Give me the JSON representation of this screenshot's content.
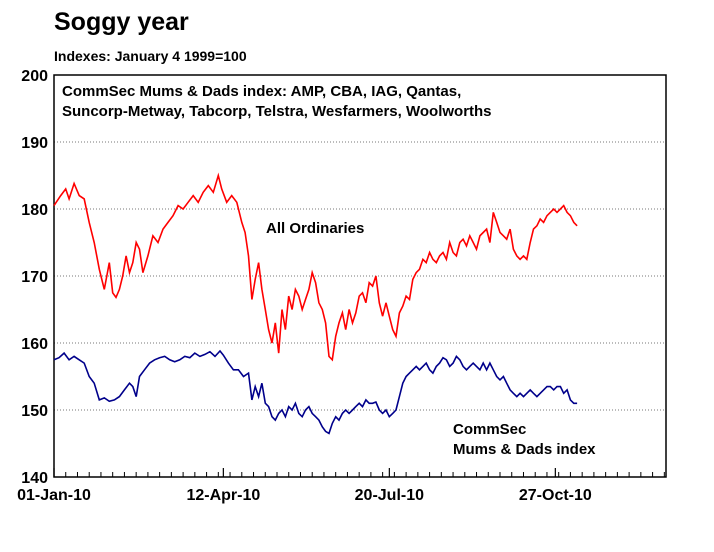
{
  "chart_data": {
    "type": "line",
    "title": "Soggy year",
    "subtitle": "Indexes: January 4 1999=100",
    "x_tick_labels": [
      "01-Jan-10",
      "12-Apr-10",
      "20-Jul-10",
      "27-Oct-10"
    ],
    "x_tick_days": [
      0,
      101,
      200,
      299
    ],
    "x_range_days": [
      0,
      365
    ],
    "ylim": [
      140,
      200
    ],
    "y_ticks": [
      140,
      150,
      160,
      170,
      180,
      190,
      200
    ],
    "grid": "horizontal dotted",
    "annotations": {
      "box_line1": "CommSec Mums & Dads index: AMP, CBA, IAG, Qantas,",
      "box_line2": "Suncorp-Metway, Tabcorp, Telstra, Wesfarmers, Woolworths",
      "all_ords_label": "All Ordinaries",
      "mums_label_line1": "CommSec",
      "mums_label_line2": "Mums & Dads index"
    },
    "series": [
      {
        "name": "All Ordinaries",
        "color": "#ff0000",
        "points": [
          [
            0,
            180.5
          ],
          [
            4,
            182
          ],
          [
            7,
            183
          ],
          [
            9,
            181.5
          ],
          [
            12,
            183.8
          ],
          [
            15,
            182
          ],
          [
            18,
            181.5
          ],
          [
            21,
            178
          ],
          [
            24,
            175
          ],
          [
            27,
            171
          ],
          [
            30,
            168
          ],
          [
            33,
            172
          ],
          [
            35,
            167.5
          ],
          [
            37,
            166.8
          ],
          [
            39,
            168
          ],
          [
            41,
            170
          ],
          [
            43,
            173
          ],
          [
            45,
            170.5
          ],
          [
            47,
            172
          ],
          [
            49,
            175
          ],
          [
            51,
            174
          ],
          [
            53,
            170.5
          ],
          [
            56,
            173
          ],
          [
            59,
            176
          ],
          [
            62,
            175
          ],
          [
            65,
            177
          ],
          [
            68,
            178
          ],
          [
            71,
            179
          ],
          [
            74,
            180.5
          ],
          [
            77,
            180
          ],
          [
            80,
            181
          ],
          [
            83,
            182
          ],
          [
            86,
            181
          ],
          [
            89,
            182.5
          ],
          [
            92,
            183.5
          ],
          [
            95,
            182.5
          ],
          [
            98,
            185
          ],
          [
            100,
            183
          ],
          [
            103,
            181
          ],
          [
            106,
            182
          ],
          [
            109,
            181
          ],
          [
            112,
            178
          ],
          [
            114,
            176.5
          ],
          [
            116,
            173
          ],
          [
            118,
            166.5
          ],
          [
            120,
            169.5
          ],
          [
            122,
            172
          ],
          [
            124,
            168
          ],
          [
            126,
            165
          ],
          [
            128,
            162
          ],
          [
            130,
            160
          ],
          [
            132,
            163
          ],
          [
            134,
            158.5
          ],
          [
            136,
            165
          ],
          [
            138,
            162
          ],
          [
            140,
            167
          ],
          [
            142,
            165
          ],
          [
            144,
            168
          ],
          [
            146,
            167
          ],
          [
            148,
            165
          ],
          [
            150,
            166.5
          ],
          [
            152,
            168
          ],
          [
            154,
            170.5
          ],
          [
            156,
            169
          ],
          [
            158,
            166
          ],
          [
            160,
            165
          ],
          [
            162,
            163
          ],
          [
            164,
            158
          ],
          [
            166,
            157.5
          ],
          [
            168,
            161
          ],
          [
            170,
            163
          ],
          [
            172,
            164.5
          ],
          [
            174,
            162
          ],
          [
            176,
            165
          ],
          [
            178,
            163
          ],
          [
            180,
            164.5
          ],
          [
            182,
            167
          ],
          [
            184,
            167.5
          ],
          [
            186,
            166
          ],
          [
            188,
            169
          ],
          [
            190,
            168.5
          ],
          [
            192,
            170
          ],
          [
            194,
            166
          ],
          [
            196,
            164
          ],
          [
            198,
            166
          ],
          [
            200,
            164
          ],
          [
            202,
            162
          ],
          [
            204,
            161
          ],
          [
            206,
            164.5
          ],
          [
            208,
            165.5
          ],
          [
            210,
            167
          ],
          [
            212,
            166.5
          ],
          [
            214,
            169.5
          ],
          [
            216,
            170.5
          ],
          [
            218,
            171
          ],
          [
            220,
            172.5
          ],
          [
            222,
            172
          ],
          [
            224,
            173.5
          ],
          [
            226,
            172.5
          ],
          [
            228,
            172
          ],
          [
            230,
            173
          ],
          [
            232,
            173.5
          ],
          [
            234,
            172.5
          ],
          [
            236,
            175
          ],
          [
            238,
            173.5
          ],
          [
            240,
            173
          ],
          [
            242,
            175
          ],
          [
            244,
            175.5
          ],
          [
            246,
            174.5
          ],
          [
            248,
            176
          ],
          [
            250,
            175
          ],
          [
            252,
            174
          ],
          [
            254,
            176
          ],
          [
            256,
            176.5
          ],
          [
            258,
            177
          ],
          [
            260,
            175
          ],
          [
            262,
            179.5
          ],
          [
            264,
            178
          ],
          [
            266,
            176.5
          ],
          [
            268,
            176
          ],
          [
            270,
            175.5
          ],
          [
            272,
            177
          ],
          [
            274,
            174
          ],
          [
            276,
            173
          ],
          [
            278,
            172.5
          ],
          [
            280,
            173
          ],
          [
            282,
            172.5
          ],
          [
            284,
            175
          ],
          [
            286,
            177
          ],
          [
            288,
            177.5
          ],
          [
            290,
            178.5
          ],
          [
            292,
            178
          ],
          [
            294,
            179
          ],
          [
            296,
            179.5
          ],
          [
            298,
            180
          ],
          [
            300,
            179.5
          ],
          [
            302,
            180
          ],
          [
            304,
            180.5
          ],
          [
            306,
            179.5
          ],
          [
            308,
            179
          ],
          [
            310,
            178
          ],
          [
            312,
            177.5
          ]
        ]
      },
      {
        "name": "CommSec Mums & Dads index",
        "color": "#00008b",
        "points": [
          [
            0,
            157.5
          ],
          [
            3,
            157.8
          ],
          [
            6,
            158.5
          ],
          [
            9,
            157.5
          ],
          [
            12,
            158
          ],
          [
            15,
            157.5
          ],
          [
            18,
            157
          ],
          [
            21,
            155
          ],
          [
            24,
            154
          ],
          [
            27,
            151.5
          ],
          [
            30,
            151.8
          ],
          [
            33,
            151.3
          ],
          [
            36,
            151.5
          ],
          [
            39,
            152
          ],
          [
            42,
            153
          ],
          [
            45,
            154
          ],
          [
            47,
            153.5
          ],
          [
            49,
            152
          ],
          [
            51,
            155
          ],
          [
            54,
            156
          ],
          [
            57,
            157
          ],
          [
            60,
            157.5
          ],
          [
            63,
            157.8
          ],
          [
            66,
            158
          ],
          [
            69,
            157.5
          ],
          [
            72,
            157.2
          ],
          [
            75,
            157.5
          ],
          [
            78,
            158
          ],
          [
            81,
            157.8
          ],
          [
            84,
            158.5
          ],
          [
            87,
            158
          ],
          [
            90,
            158.3
          ],
          [
            93,
            158.7
          ],
          [
            96,
            158
          ],
          [
            99,
            158.8
          ],
          [
            101,
            158.2
          ],
          [
            104,
            157
          ],
          [
            107,
            156
          ],
          [
            110,
            156
          ],
          [
            113,
            155
          ],
          [
            116,
            155.5
          ],
          [
            118,
            151.5
          ],
          [
            120,
            153.5
          ],
          [
            122,
            152
          ],
          [
            124,
            154
          ],
          [
            126,
            151
          ],
          [
            128,
            150.5
          ],
          [
            130,
            149
          ],
          [
            132,
            148.5
          ],
          [
            134,
            149.5
          ],
          [
            136,
            150
          ],
          [
            138,
            149
          ],
          [
            140,
            150.5
          ],
          [
            142,
            150
          ],
          [
            144,
            151
          ],
          [
            146,
            149.5
          ],
          [
            148,
            149
          ],
          [
            150,
            150
          ],
          [
            152,
            150.5
          ],
          [
            154,
            149.5
          ],
          [
            156,
            149
          ],
          [
            158,
            148.5
          ],
          [
            160,
            147.5
          ],
          [
            162,
            146.8
          ],
          [
            164,
            146.5
          ],
          [
            166,
            148
          ],
          [
            168,
            149
          ],
          [
            170,
            148.5
          ],
          [
            172,
            149.5
          ],
          [
            174,
            150
          ],
          [
            176,
            149.5
          ],
          [
            178,
            150
          ],
          [
            180,
            150.5
          ],
          [
            182,
            151
          ],
          [
            184,
            150.5
          ],
          [
            186,
            151.5
          ],
          [
            188,
            151
          ],
          [
            190,
            151
          ],
          [
            192,
            151.2
          ],
          [
            194,
            150
          ],
          [
            196,
            149.5
          ],
          [
            198,
            150
          ],
          [
            200,
            149
          ],
          [
            202,
            149.5
          ],
          [
            204,
            150
          ],
          [
            206,
            152
          ],
          [
            208,
            154
          ],
          [
            210,
            155
          ],
          [
            212,
            155.5
          ],
          [
            214,
            156
          ],
          [
            216,
            156.5
          ],
          [
            218,
            156
          ],
          [
            220,
            156.5
          ],
          [
            222,
            157
          ],
          [
            224,
            156
          ],
          [
            226,
            155.5
          ],
          [
            228,
            156.5
          ],
          [
            230,
            157
          ],
          [
            232,
            157.8
          ],
          [
            234,
            157.5
          ],
          [
            236,
            156.5
          ],
          [
            238,
            157
          ],
          [
            240,
            158
          ],
          [
            242,
            157.5
          ],
          [
            244,
            156.5
          ],
          [
            246,
            156
          ],
          [
            248,
            156.5
          ],
          [
            250,
            157
          ],
          [
            252,
            156.5
          ],
          [
            254,
            156
          ],
          [
            256,
            157
          ],
          [
            258,
            156
          ],
          [
            260,
            157
          ],
          [
            262,
            156
          ],
          [
            264,
            155
          ],
          [
            266,
            154.5
          ],
          [
            268,
            155
          ],
          [
            270,
            154
          ],
          [
            272,
            153
          ],
          [
            274,
            152.5
          ],
          [
            276,
            152
          ],
          [
            278,
            152.5
          ],
          [
            280,
            152
          ],
          [
            282,
            152.5
          ],
          [
            284,
            153
          ],
          [
            286,
            152.5
          ],
          [
            288,
            152
          ],
          [
            290,
            152.5
          ],
          [
            292,
            153
          ],
          [
            294,
            153.5
          ],
          [
            296,
            153.5
          ],
          [
            298,
            153
          ],
          [
            300,
            153.5
          ],
          [
            302,
            153.5
          ],
          [
            304,
            152.5
          ],
          [
            306,
            153
          ],
          [
            308,
            151.5
          ],
          [
            310,
            151
          ],
          [
            312,
            151
          ]
        ]
      }
    ]
  }
}
